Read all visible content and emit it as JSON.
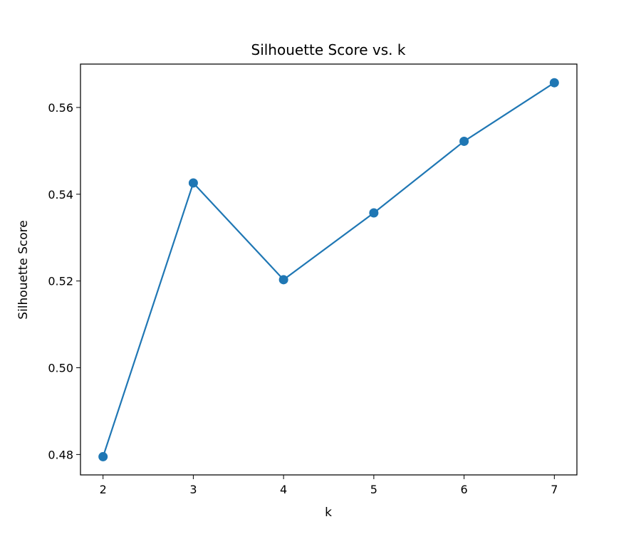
{
  "chart_data": {
    "type": "line",
    "title": "Silhouette Score vs. k",
    "xlabel": "k",
    "ylabel": "Silhouette Score",
    "x": [
      2,
      3,
      4,
      5,
      6,
      7
    ],
    "series": [
      {
        "values": [
          0.4795,
          0.5426,
          0.5203,
          0.5357,
          0.5522,
          0.5657
        ],
        "color": "#1f77b4",
        "marker": "circle"
      }
    ],
    "xlim": [
      1.75,
      7.25
    ],
    "ylim": [
      0.4753,
      0.57
    ],
    "xticks": [
      2,
      3,
      4,
      5,
      6,
      7
    ],
    "xtick_labels": [
      "2",
      "3",
      "4",
      "5",
      "6",
      "7"
    ],
    "yticks": [
      0.48,
      0.5,
      0.52,
      0.54,
      0.56
    ],
    "ytick_labels": [
      "0.48",
      "0.50",
      "0.52",
      "0.54",
      "0.56"
    ],
    "grid": false,
    "legend": "none"
  }
}
